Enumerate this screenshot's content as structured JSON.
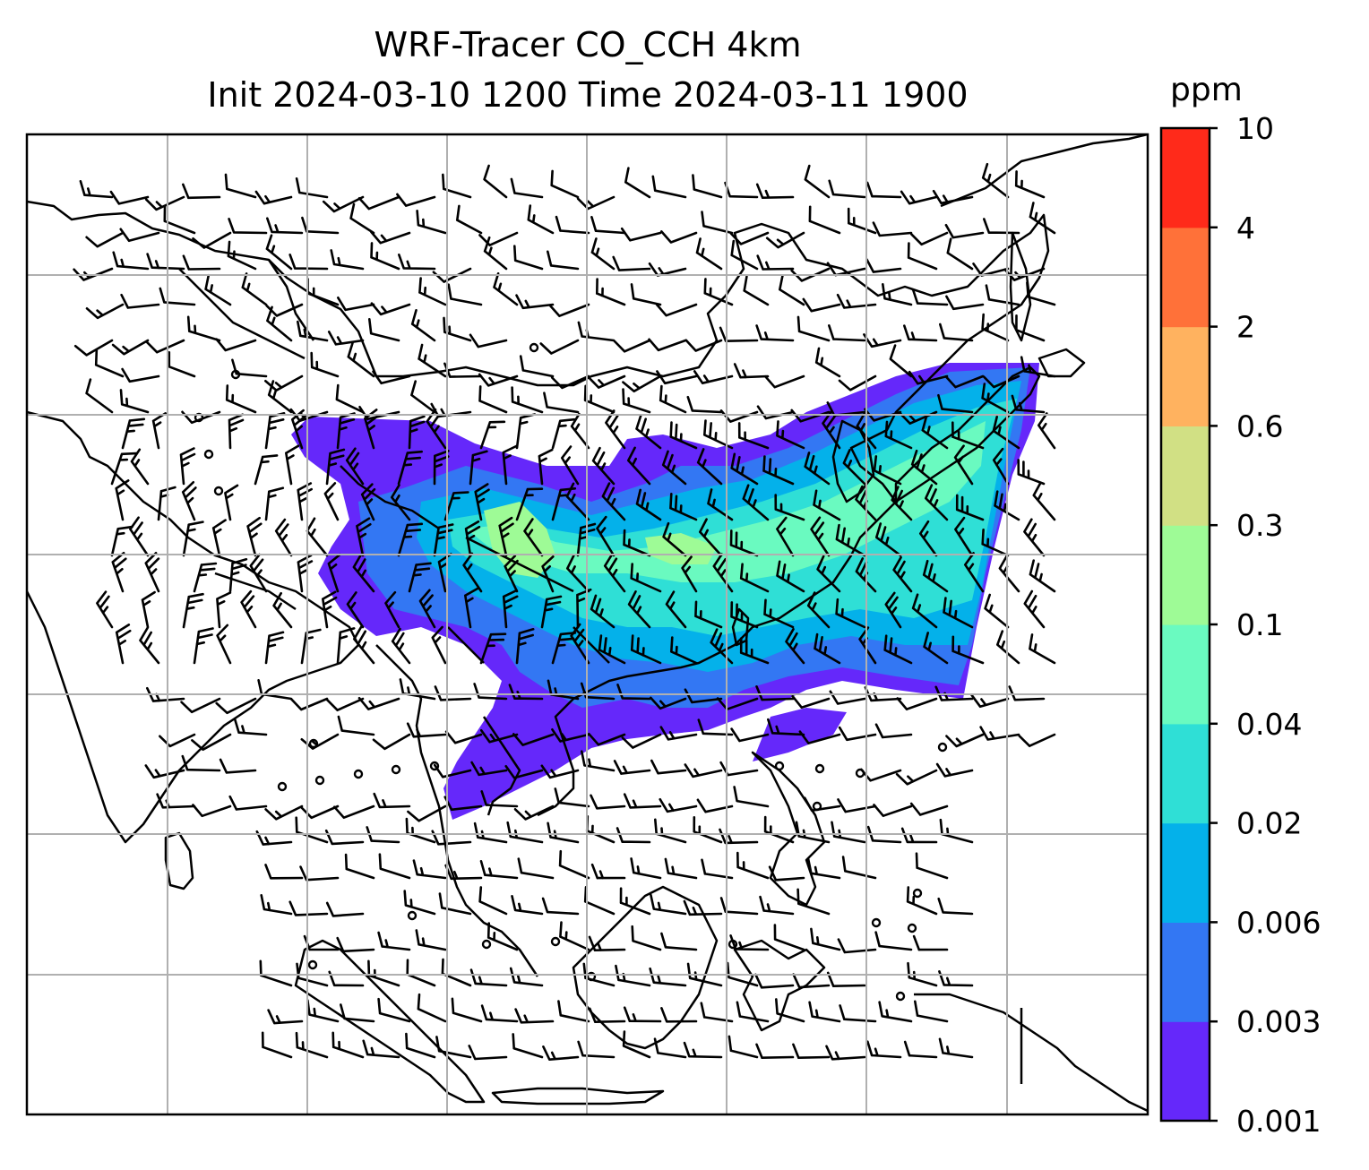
{
  "chart_data": {
    "type": "heatmap",
    "title_line1": "WRF-Tracer CO_CCH 4km",
    "title_line2": "Init 2024-03-10 1200 Time 2024-03-11 1900",
    "colorbar": {
      "unit": "ppm",
      "levels": [
        "0.001",
        "0.003",
        "0.006",
        "0.02",
        "0.04",
        "0.1",
        "0.3",
        "0.6",
        "2",
        "4",
        "10"
      ],
      "colors": [
        "#6528fa",
        "#3377f3",
        "#04b1ea",
        "#2fdfd6",
        "#6afac0",
        "#9efb96",
        "#d1e084",
        "#ffb25f",
        "#ff7139",
        "#ff2a1a"
      ]
    },
    "grid": true,
    "gridline_color": "#b0b0b0",
    "coastline_color": "#000000",
    "field_description_note": null
  }
}
